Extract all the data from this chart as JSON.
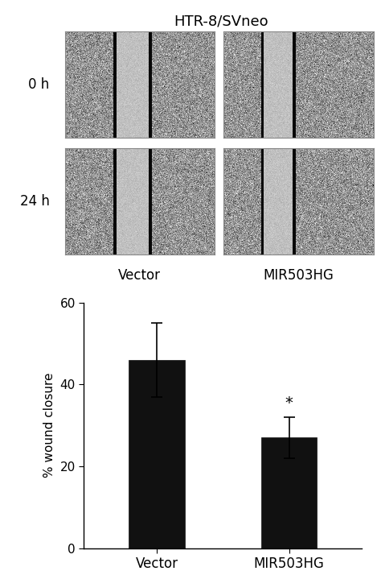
{
  "title": "HTR-8/SVneo",
  "row_labels": [
    "0 h",
    "24 h"
  ],
  "col_labels_bottom": [
    "Vector",
    "MIR503HG"
  ],
  "bar_categories": [
    "Vector",
    "MIR503HG"
  ],
  "bar_values": [
    46.0,
    27.0
  ],
  "bar_errors": [
    9.0,
    5.0
  ],
  "bar_color": "#111111",
  "ylabel": "% wound closure",
  "ylim": [
    0,
    60
  ],
  "yticks": [
    0,
    20,
    40,
    60
  ],
  "significance": "*",
  "bg_color": "#ffffff",
  "panel_configs": [
    {
      "wl": 0.32,
      "wr": 0.58,
      "seed": 10
    },
    {
      "wl": 0.25,
      "wr": 0.48,
      "seed": 20
    },
    {
      "wl": 0.32,
      "wr": 0.58,
      "seed": 30
    },
    {
      "wl": 0.25,
      "wr": 0.48,
      "seed": 40
    }
  ]
}
